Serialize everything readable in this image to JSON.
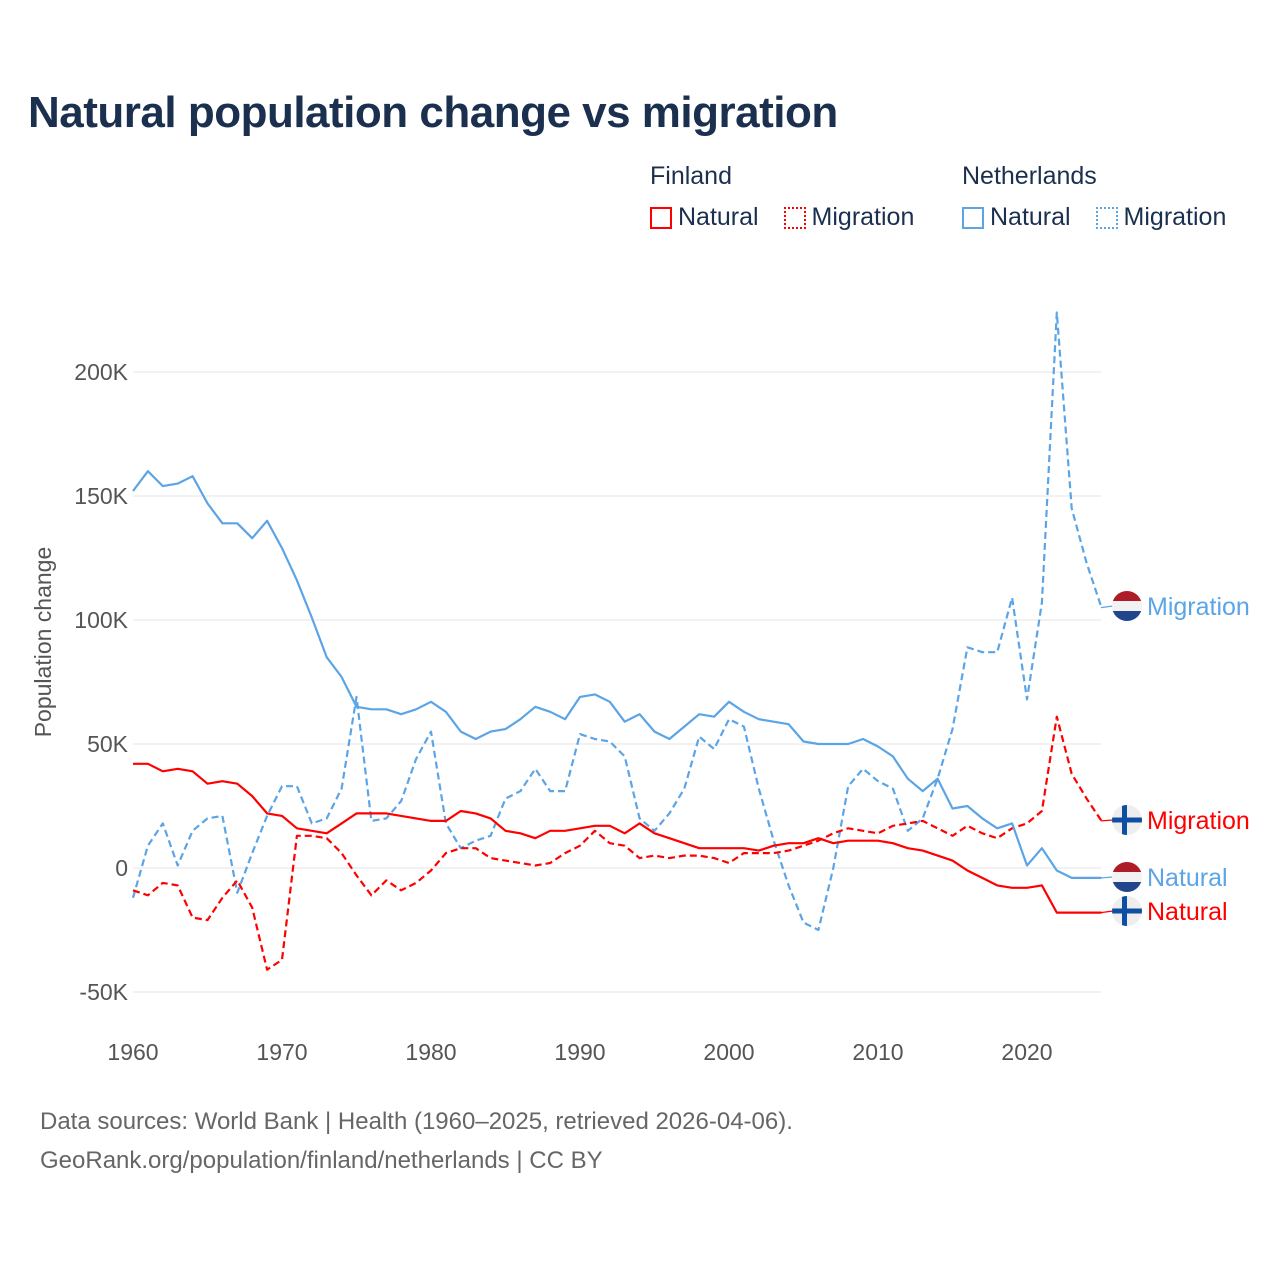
{
  "chart_data": {
    "type": "line",
    "title": "Natural population change vs migration",
    "xlabel": "",
    "ylabel": "Population change",
    "xlim": [
      1960,
      2025
    ],
    "ylim": [
      -60000,
      240000
    ],
    "x_ticks": [
      "1960",
      "1970",
      "1980",
      "1990",
      "2000",
      "2010",
      "2020"
    ],
    "x_tick_values": [
      1960,
      1970,
      1980,
      1990,
      2000,
      2010,
      2020
    ],
    "y_ticks": [
      "-50K",
      "0",
      "50K",
      "100K",
      "150K",
      "200K"
    ],
    "y_tick_values": [
      -50000,
      0,
      50000,
      100000,
      150000,
      200000
    ],
    "grid": true,
    "legend": {
      "groups": [
        {
          "country": "Finland",
          "items": [
            "Natural",
            "Migration"
          ],
          "color": "#ff0000"
        },
        {
          "country": "Netherlands",
          "items": [
            "Natural",
            "Migration"
          ],
          "color": "#5ba4e6"
        }
      ],
      "placement": "top-right"
    },
    "start_year": 1960,
    "series": [
      {
        "name": "Netherlands Migration",
        "country": "Netherlands",
        "kind": "Migration",
        "label": "Migration",
        "color": "#5ba4e6",
        "dashed": true,
        "values": [
          -12,
          9,
          18,
          1,
          15,
          20,
          21,
          -10,
          6,
          21,
          33,
          33,
          18,
          20,
          32,
          69,
          19,
          20,
          27,
          44,
          55,
          18,
          8,
          11,
          13,
          28,
          31,
          40,
          31,
          31,
          54,
          52,
          51,
          45,
          20,
          15,
          22,
          32,
          53,
          48,
          60,
          57,
          32,
          11,
          -7,
          -22,
          -25,
          0,
          33,
          40,
          35,
          32,
          15,
          20,
          36,
          56,
          89,
          87,
          87,
          109,
          68,
          107,
          224,
          145,
          123,
          105
        ]
      },
      {
        "name": "Finland Migration",
        "country": "Finland",
        "kind": "Migration",
        "label": "Migration",
        "color": "#ff0000",
        "dashed": true,
        "values": [
          -9,
          -11,
          -6,
          -7,
          -20,
          -21,
          -12,
          -5,
          -16,
          -41,
          -37,
          13,
          13,
          12,
          6,
          -3,
          -11,
          -5,
          -9,
          -6,
          -1,
          6,
          8,
          8,
          4,
          3,
          2,
          1,
          2,
          6,
          9,
          15,
          10,
          9,
          4,
          5,
          4,
          5,
          5,
          4,
          2,
          6,
          6,
          6,
          7,
          9,
          11,
          14,
          16,
          15,
          14,
          17,
          18,
          19,
          16,
          13,
          17,
          14,
          12,
          16,
          18,
          23,
          61,
          38,
          28,
          19
        ]
      },
      {
        "name": "Netherlands Natural",
        "country": "Netherlands",
        "kind": "Natural",
        "label": "Natural",
        "color": "#5ba4e6",
        "dashed": false,
        "values": [
          152,
          160,
          154,
          155,
          158,
          147,
          139,
          139,
          133,
          140,
          129,
          116,
          101,
          85,
          77,
          65,
          64,
          64,
          62,
          64,
          67,
          63,
          55,
          52,
          55,
          56,
          60,
          65,
          63,
          60,
          69,
          70,
          67,
          59,
          62,
          55,
          52,
          57,
          62,
          61,
          67,
          63,
          60,
          59,
          58,
          51,
          50,
          50,
          50,
          52,
          49,
          45,
          36,
          31,
          36,
          24,
          25,
          20,
          16,
          18,
          1,
          8,
          -1,
          -4,
          -4,
          -4
        ]
      },
      {
        "name": "Finland Natural",
        "country": "Finland",
        "kind": "Natural",
        "label": "Natural",
        "color": "#ff0000",
        "dashed": false,
        "values": [
          42,
          42,
          39,
          40,
          39,
          34,
          35,
          34,
          29,
          22,
          21,
          16,
          15,
          14,
          18,
          22,
          22,
          22,
          21,
          20,
          19,
          19,
          23,
          22,
          20,
          15,
          14,
          12,
          15,
          15,
          16,
          17,
          17,
          14,
          18,
          14,
          12,
          10,
          8,
          8,
          8,
          8,
          7,
          9,
          10,
          10,
          12,
          10,
          11,
          11,
          11,
          10,
          8,
          7,
          5,
          3,
          -1,
          -4,
          -7,
          -8,
          -8,
          -7,
          -18,
          -18,
          -18,
          -18
        ]
      }
    ],
    "value_unit": "thousands"
  },
  "footer": {
    "line1": "Data sources: World Bank | Health (1960–2025, retrieved 2026-04-06).",
    "line2": "GeoRank.org/population/finland/netherlands | CC BY"
  }
}
